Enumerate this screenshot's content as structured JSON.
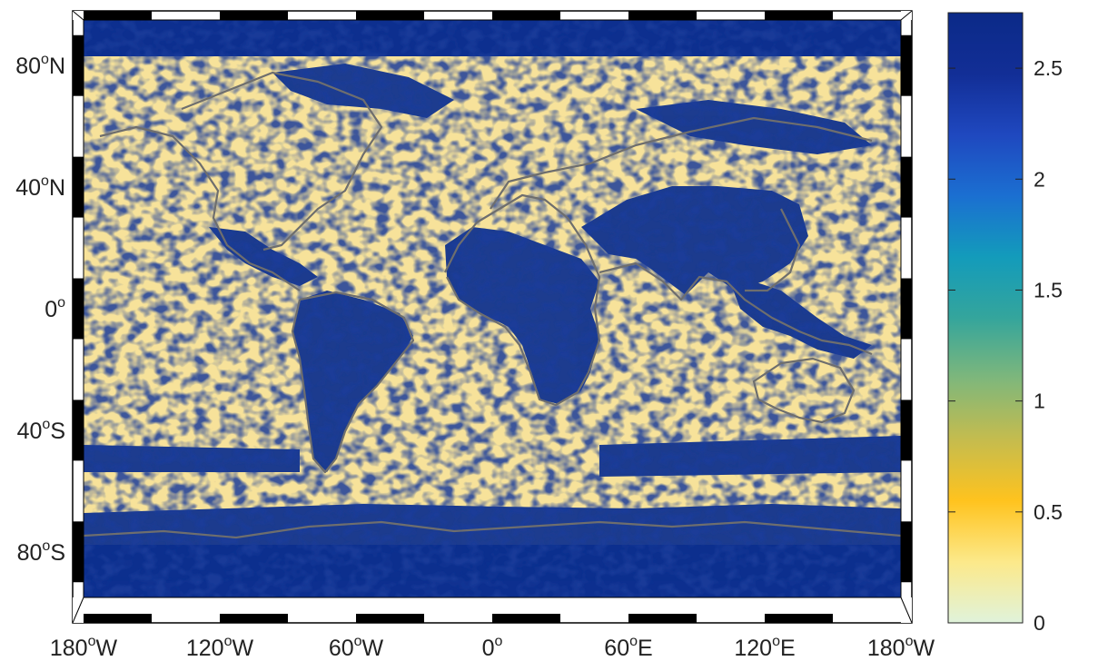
{
  "map": {
    "projection": "equirectangular",
    "lat_labels": [
      {
        "base": "80",
        "sup": "o",
        "hemi": "N",
        "lat": 80
      },
      {
        "base": "40",
        "sup": "o",
        "hemi": "N",
        "lat": 40
      },
      {
        "base": "0",
        "sup": "o",
        "hemi": "",
        "lat": 0
      },
      {
        "base": "40",
        "sup": "o",
        "hemi": "S",
        "lat": -40
      },
      {
        "base": "80",
        "sup": "o",
        "hemi": "S",
        "lat": -80
      }
    ],
    "lon_labels": [
      {
        "base": "180",
        "sup": "o",
        "hemi": "W",
        "lon": -180
      },
      {
        "base": "120",
        "sup": "o",
        "hemi": "W",
        "lon": -120
      },
      {
        "base": "60",
        "sup": "o",
        "hemi": "W",
        "lon": -60
      },
      {
        "base": "0",
        "sup": "o",
        "hemi": "",
        "lon": 0
      },
      {
        "base": "60",
        "sup": "o",
        "hemi": "E",
        "lon": 60
      },
      {
        "base": "120",
        "sup": "o",
        "hemi": "E",
        "lon": 120
      },
      {
        "base": "180",
        "sup": "o",
        "hemi": "W",
        "lon": 180
      }
    ],
    "lat_range": [
      -95,
      95
    ],
    "lon_range": [
      -180,
      180
    ],
    "coastline_color": "#6e6e6e",
    "high_color": "#0c2f8e",
    "low_color": "#f5dd82"
  },
  "colorbar": {
    "ticks": [
      "0",
      "0.5",
      "1",
      "1.5",
      "2",
      "2.5"
    ],
    "tick_values": [
      0,
      0.5,
      1,
      1.5,
      2,
      2.5
    ],
    "range": [
      0,
      2.75
    ],
    "colormap": [
      "#e0f3db",
      "#fce98a",
      "#ffc31e",
      "#c5bc4e",
      "#7fb77b",
      "#34a59c",
      "#139bbb",
      "#1b6fd1",
      "#1f48bf",
      "#122e96",
      "#0b2a88"
    ]
  }
}
